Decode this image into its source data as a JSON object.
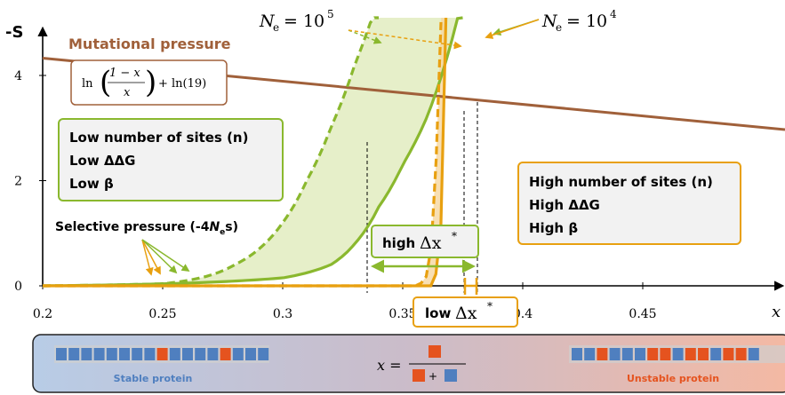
{
  "chart_data": {
    "type": "line",
    "xlabel": "x",
    "ylabel": "-S",
    "xlim": [
      0.2,
      0.47
    ],
    "ylim": [
      0,
      4.6
    ],
    "x_ticks": [
      "0.2",
      "0.25",
      "0.3",
      "0.35",
      "0.4",
      "0.45"
    ],
    "y_ticks": [
      "0",
      "2",
      "4"
    ],
    "series": [
      {
        "name": "Mutational pressure",
        "type": "line",
        "color": "#a0603a",
        "formula": "ln((1-x)/x) + ln(19)",
        "x": [
          0.2,
          0.25,
          0.3,
          0.35,
          0.4,
          0.45,
          0.47
        ],
        "y": [
          4.33,
          4.04,
          3.79,
          3.56,
          3.35,
          3.14,
          3.05
        ]
      },
      {
        "name": "N_e = 10^5",
        "type": "line",
        "style": "dashed",
        "color": "#8ab82e",
        "x": [
          0.2,
          0.25,
          0.26,
          0.28,
          0.3,
          0.31,
          0.32,
          0.33,
          0.34
        ],
        "y": [
          0.0,
          0.04,
          0.1,
          0.4,
          1.2,
          2.0,
          3.0,
          4.2,
          5.5
        ]
      },
      {
        "name": "N_e = 10^4",
        "type": "line",
        "style": "solid",
        "color": "#8ab82e",
        "x": [
          0.2,
          0.3,
          0.32,
          0.33,
          0.34,
          0.35,
          0.36,
          0.375
        ],
        "y": [
          0.0,
          0.15,
          0.4,
          0.8,
          1.5,
          2.3,
          3.2,
          5.5
        ]
      },
      {
        "name": "N_e = 10^5",
        "type": "line",
        "style": "dashed",
        "color": "#e8a010",
        "x": [
          0.2,
          0.355,
          0.36,
          0.362,
          0.364,
          0.366
        ],
        "y": [
          0.0,
          0.0,
          0.2,
          0.8,
          2.5,
          5.5
        ]
      },
      {
        "name": "N_e = 10^4",
        "type": "line",
        "style": "solid",
        "color": "#e8a010",
        "x": [
          0.2,
          0.362,
          0.364,
          0.366,
          0.367,
          0.368
        ],
        "y": [
          0.0,
          0.0,
          0.3,
          1.2,
          3.0,
          5.5
        ]
      }
    ]
  },
  "axis": {
    "y_label": "-S",
    "x_label": "x"
  },
  "labels": {
    "mutational_pressure": "Mutational pressure",
    "formula_left": "ln",
    "formula_num": "1 − x",
    "formula_den": "x",
    "formula_right": "+ ln(19)",
    "ne_high": "N",
    "ne_high_sub": "e",
    "ne_high_eq": "= 10",
    "ne_high_exp": "5",
    "ne_low": "N",
    "ne_low_sub": "e",
    "ne_low_eq": "= 10",
    "ne_low_exp": "4",
    "selective_pressure_prefix": "Selective pressure (-4",
    "selective_pressure_N": "N",
    "selective_pressure_sub": "e",
    "selective_pressure_suffix": "s)",
    "high_dx_word": "high",
    "low_dx_word": "low",
    "delta_x": "Δx",
    "delta_star": "*"
  },
  "left_box": {
    "lines": [
      "Low number of sites (n)",
      "Low ΔΔG",
      "Low β"
    ]
  },
  "right_box": {
    "lines": [
      "High number of sites (n)",
      "High ΔΔG",
      "High β"
    ]
  },
  "protein_bar": {
    "stable_label": "Stable protein",
    "unstable_label": "Unstable protein",
    "x_eq": "x =",
    "plus": "+",
    "stable_sequence": [
      "b",
      "b",
      "b",
      "b",
      "b",
      "b",
      "b",
      "b",
      "r",
      "b",
      "b",
      "b",
      "b",
      "r",
      "b",
      "b",
      "b"
    ],
    "unstable_sequence": [
      "b",
      "b",
      "r",
      "b",
      "b",
      "b",
      "r",
      "r",
      "b",
      "r",
      "r",
      "b",
      "r",
      "r",
      "b"
    ]
  },
  "colors": {
    "brown": "#a0603a",
    "green": "#8ab82e",
    "orange": "#e8a010",
    "shade": "#e6efc9",
    "protein_blue": "#4f7fbf",
    "protein_red": "#e5531f"
  }
}
